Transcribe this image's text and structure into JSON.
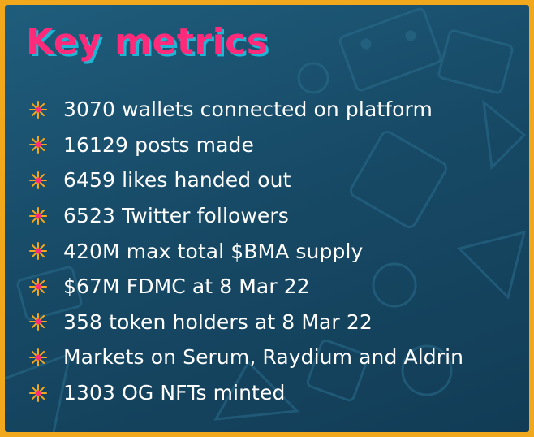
{
  "title": "Key metrics",
  "bullet_icon": "starburst-icon",
  "colors": {
    "frame": "#f2a81d",
    "background": "#174a66",
    "title": "#ff2a7a",
    "title_shadow": "#1fb6d6",
    "bullet": "#f2a81d",
    "bullet_center": "#ff2a7a",
    "text": "#ffffff"
  },
  "metrics": [
    {
      "text": "3070 wallets connected on platform"
    },
    {
      "text": "16129 posts made"
    },
    {
      "text": "6459 likes handed out"
    },
    {
      "text": "6523 Twitter followers"
    },
    {
      "text": "420M max total $BMA supply"
    },
    {
      "text": "$67M FDMC at 8 Mar 22"
    },
    {
      "text": "358 token holders at 8 Mar 22"
    },
    {
      "text": "Markets on Serum, Raydium and Aldrin"
    },
    {
      "text": "1303 OG NFTs minted"
    }
  ]
}
